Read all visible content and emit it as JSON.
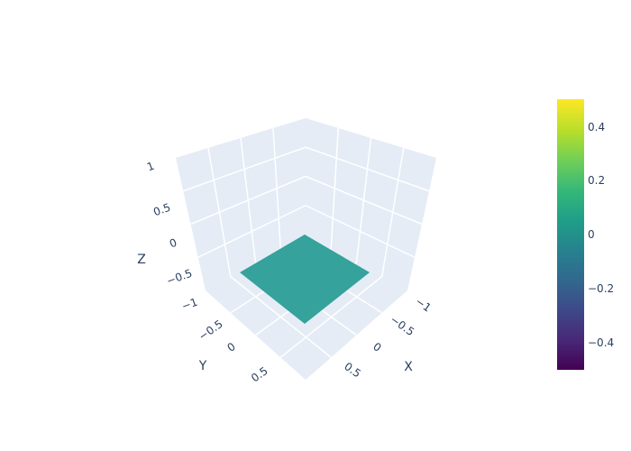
{
  "chart_data": {
    "type": "surface",
    "title": "",
    "axes": {
      "x": {
        "label": "X",
        "range": [
          -1,
          1
        ],
        "ticks": [
          "−1",
          "−0.5",
          "0",
          "0.5"
        ]
      },
      "y": {
        "label": "Y",
        "range": [
          -1,
          1
        ],
        "ticks": [
          "−1",
          "−0.5",
          "0",
          "0.5"
        ]
      },
      "z": {
        "label": "Z",
        "range": [
          -1,
          1
        ],
        "ticks": [
          "−1",
          "−0.5",
          "0",
          "0.5",
          "1"
        ]
      }
    },
    "surface": {
      "x_extent": [
        -0.5,
        0.5
      ],
      "y_extent": [
        -0.5,
        0.5
      ],
      "z": 0,
      "color": "#35a29c"
    },
    "colorbar": {
      "colorscale": "viridis",
      "range": [
        -0.5,
        0.5
      ],
      "ticks": [
        "0.4",
        "0.2",
        "0",
        "−0.2",
        "−0.4"
      ]
    },
    "grid": true,
    "background_color": "#e5ecf6",
    "grid_color": "#ffffff"
  }
}
